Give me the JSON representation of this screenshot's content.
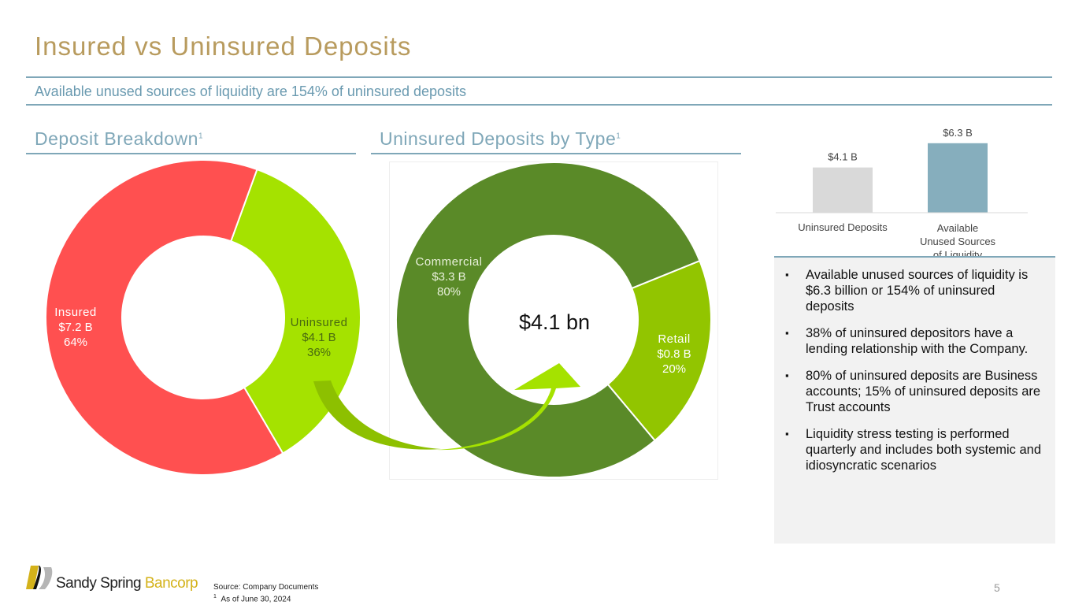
{
  "title": "Insured vs Uninsured Deposits",
  "subtitle": "Available unused sources of liquidity are 154% of uninsured deposits",
  "sections": {
    "deposit_breakdown": "Deposit Breakdown",
    "uninsured_by_type": "Uninsured Deposits by Type",
    "footnote_ref": "1"
  },
  "chart_data": [
    {
      "type": "pie",
      "title": "Deposit Breakdown",
      "donut": true,
      "slices": [
        {
          "label": "Insured",
          "value_label": "$7.2 B",
          "value": 7.2,
          "percent": 64,
          "color": "#FF5050"
        },
        {
          "label": "Uninsured",
          "value_label": "$4.1 B",
          "value": 4.1,
          "percent": 36,
          "color": "#A5E200"
        }
      ]
    },
    {
      "type": "pie",
      "title": "Uninsured Deposits by Type",
      "donut": true,
      "center_label": "$4.1 bn",
      "slices": [
        {
          "label": "Commercial",
          "value_label": "$3.3 B",
          "value": 3.3,
          "percent": 80,
          "color": "#5A8A28"
        },
        {
          "label": "Retail",
          "value_label": "$0.8 B",
          "value": 0.8,
          "percent": 20,
          "color": "#92C500"
        }
      ]
    },
    {
      "type": "bar",
      "categories": [
        "Uninsured Deposits",
        "Available Unused Sources of Liquidity"
      ],
      "values": [
        4.1,
        6.3
      ],
      "data_labels": [
        "$4.1 B",
        "$6.3 B"
      ],
      "colors": [
        "#D9D9D9",
        "#86AEBD"
      ]
    }
  ],
  "bullets": [
    "Available unused sources of liquidity is $6.3 billion or 154% of uninsured deposits",
    "38% of uninsured depositors have a lending relationship with the Company.",
    "80% of uninsured deposits are Business accounts; 15% of uninsured deposits are Trust accounts",
    "Liquidity stress testing is performed quarterly and includes both systemic and idiosyncratic scenarios"
  ],
  "footer": {
    "logo_text_1": "Sandy Spring",
    "logo_text_2": "Bancorp",
    "source": "Source: Company Documents",
    "footnote_mark": "1",
    "footnote": "As of June 30, 2024",
    "page": "5"
  }
}
